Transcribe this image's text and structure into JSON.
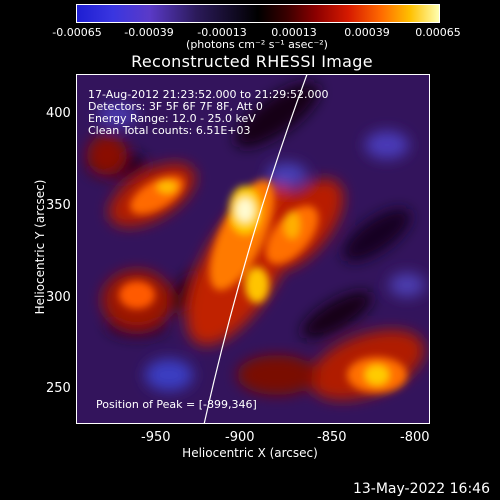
{
  "colorbar": {
    "ticks": [
      "-0.00065",
      "-0.00039",
      "-0.00013",
      "0.00013",
      "0.00039",
      "0.00065"
    ],
    "unit": "(photons cm⁻² s⁻¹ asec⁻²)"
  },
  "plot": {
    "title": "Reconstructed RHESSI Image",
    "annotations": {
      "time": "17-Aug-2012 21:23:52.000 to 21:29:52.000",
      "detectors": "Detectors: 3F 5F 6F 7F 8F, Att 0",
      "energy": "Energy Range: 12.0 - 25.0 keV",
      "algorithm": "Clean     Total counts: 6.51E+03",
      "peak": "Position of Peak = [-899,346]"
    },
    "x_axis": {
      "label": "Heliocentric X (arcsec)",
      "ticks": [
        "-950",
        "-900",
        "-850",
        "-800"
      ]
    },
    "y_axis": {
      "label": "Heliocentric Y (arcsec)",
      "ticks": [
        "400",
        "350",
        "300",
        "250"
      ]
    }
  },
  "footer": {
    "date": "13-May-2022 16:46"
  }
}
